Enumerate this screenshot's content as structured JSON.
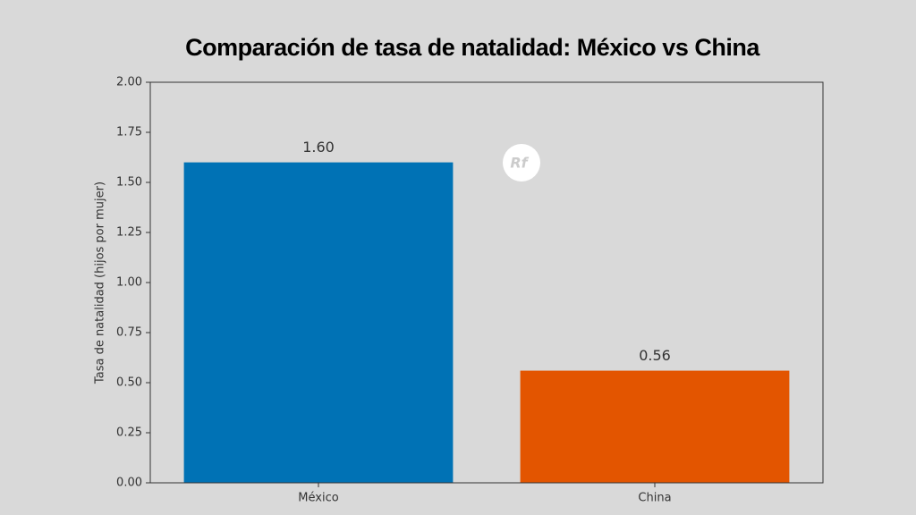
{
  "chart_data": {
    "type": "bar",
    "title": "Comparación de tasa de natalidad: México vs China",
    "y_label": "Tasa de natalidad (hijos por mujer)",
    "categories": [
      "México",
      "China"
    ],
    "values": [
      1.6,
      0.56
    ],
    "value_labels": [
      "1.60",
      "0.56"
    ],
    "colors": [
      "#0072b5",
      "#e35500"
    ],
    "ylim": [
      0,
      2
    ],
    "yticks": [
      {
        "value": 0,
        "label": "0.00"
      },
      {
        "value": 0.25,
        "label": "0.25"
      },
      {
        "value": 0.5,
        "label": "0.50"
      },
      {
        "value": 0.75,
        "label": "0.75"
      },
      {
        "value": 1,
        "label": "1.00"
      },
      {
        "value": 1.25,
        "label": "1.25"
      },
      {
        "value": 1.5,
        "label": "1.50"
      },
      {
        "value": 1.75,
        "label": "1.75"
      },
      {
        "value": 2,
        "label": "2.00"
      }
    ],
    "grid": false,
    "watermark": "Rf"
  }
}
